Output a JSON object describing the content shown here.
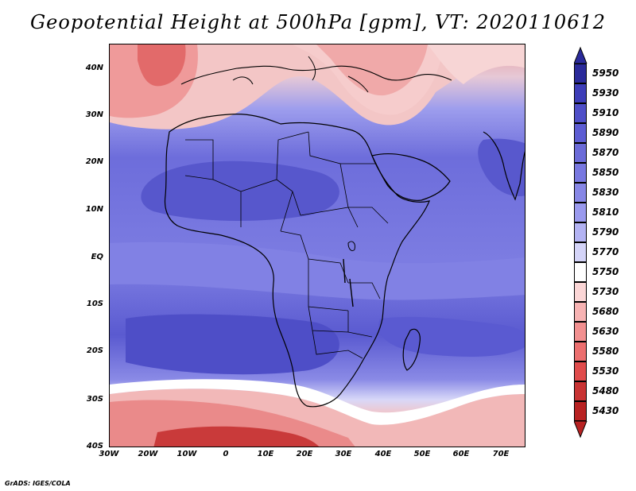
{
  "title": "Geopotential Height at 500hPa [gpm], VT: 2020110612",
  "credit": "GrADS: IGES/COLA",
  "map": {
    "lat_labels": [
      "40N",
      "30N",
      "20N",
      "10N",
      "EQ",
      "10S",
      "20S",
      "30S",
      "40S"
    ],
    "lat_values": [
      40,
      30,
      20,
      10,
      0,
      -10,
      -20,
      -30,
      -40
    ],
    "lon_labels": [
      "30W",
      "20W",
      "10W",
      "0",
      "10E",
      "20E",
      "30E",
      "40E",
      "50E",
      "60E",
      "70E"
    ],
    "lon_values": [
      -30,
      -20,
      -10,
      0,
      10,
      20,
      30,
      40,
      50,
      60,
      70
    ],
    "lon_range": [
      -30,
      77
    ],
    "lat_range": [
      -40,
      45
    ]
  },
  "colorbar": {
    "levels": [
      "5950",
      "5930",
      "5910",
      "5890",
      "5870",
      "5850",
      "5830",
      "5810",
      "5790",
      "5770",
      "5750",
      "5730",
      "5680",
      "5630",
      "5580",
      "5530",
      "5480",
      "5430"
    ],
    "colors": [
      "#2a2a9a",
      "#3d3db8",
      "#4f4fc8",
      "#5d5dd3",
      "#6b6bd8",
      "#7878e0",
      "#8787e6",
      "#9a9aee",
      "#b3b3f3",
      "#d4d4f8",
      "#ffffff",
      "#fbd6d6",
      "#f7b3b3",
      "#f29090",
      "#ec6f6f",
      "#e04c4c",
      "#c83333",
      "#b82222"
    ],
    "top_arrow_color": "#2a2a9a",
    "bottom_arrow_color": "#b82222"
  }
}
